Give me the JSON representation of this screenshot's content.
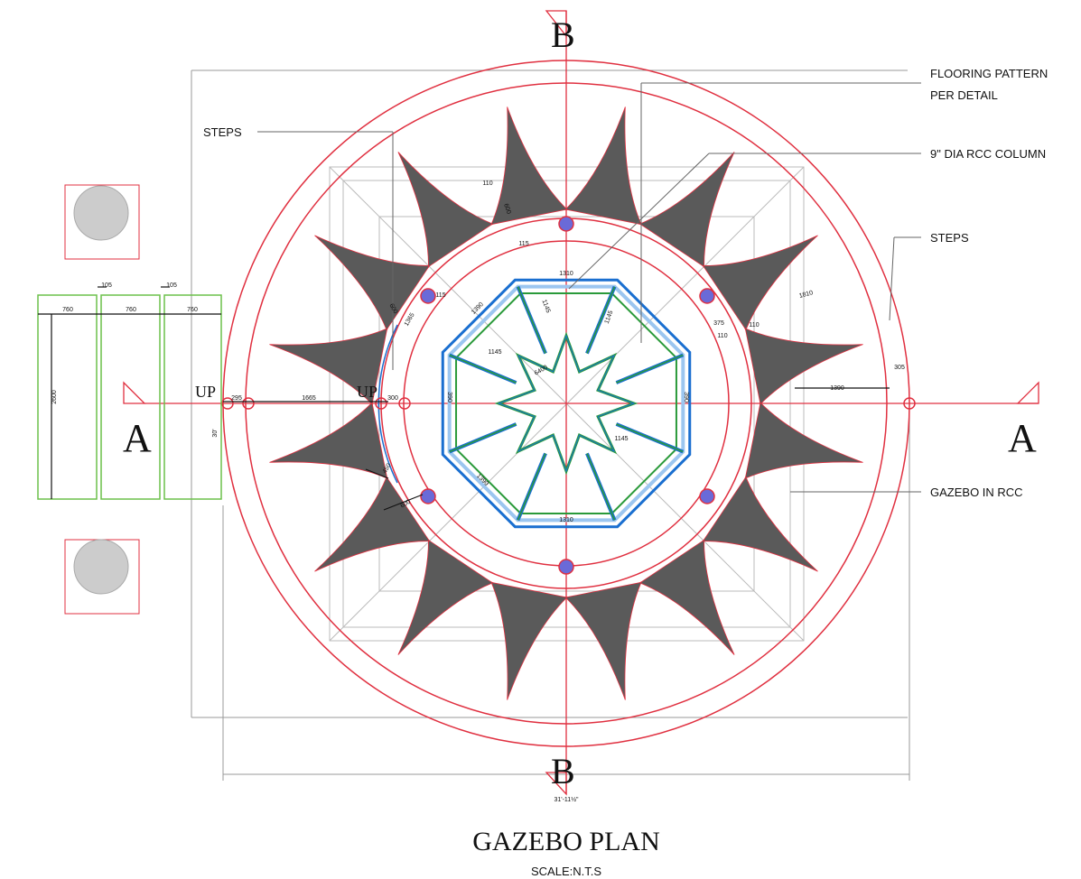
{
  "section_markers": {
    "top": "B",
    "bottom": "B",
    "left": "A",
    "right": "A"
  },
  "callouts": {
    "flooring": [
      "FLOORING PATTERN",
      "PER DETAIL"
    ],
    "column": "9\" DIA RCC COLUMN",
    "steps_left": "STEPS",
    "steps_right": "STEPS",
    "gazebo": "GAZEBO IN RCC"
  },
  "up_labels": [
    "UP",
    "UP"
  ],
  "dimensions": [
    "105",
    "105",
    "760",
    "760",
    "760",
    "2600",
    "295",
    "1665",
    "300",
    "1310",
    "1310",
    "1145",
    "1145",
    "1145",
    "1145",
    "1390",
    "1390",
    "6400",
    "1390",
    "305",
    "1810",
    "375",
    "110",
    "110",
    "110",
    "600",
    "115",
    "115",
    "600",
    "1365",
    "390",
    "390",
    "450",
    "600"
  ],
  "overall_height": "30'",
  "overall_width": "31'-11½\"",
  "title": "GAZEBO PLAN",
  "scale": "SCALE:N.T.S"
}
